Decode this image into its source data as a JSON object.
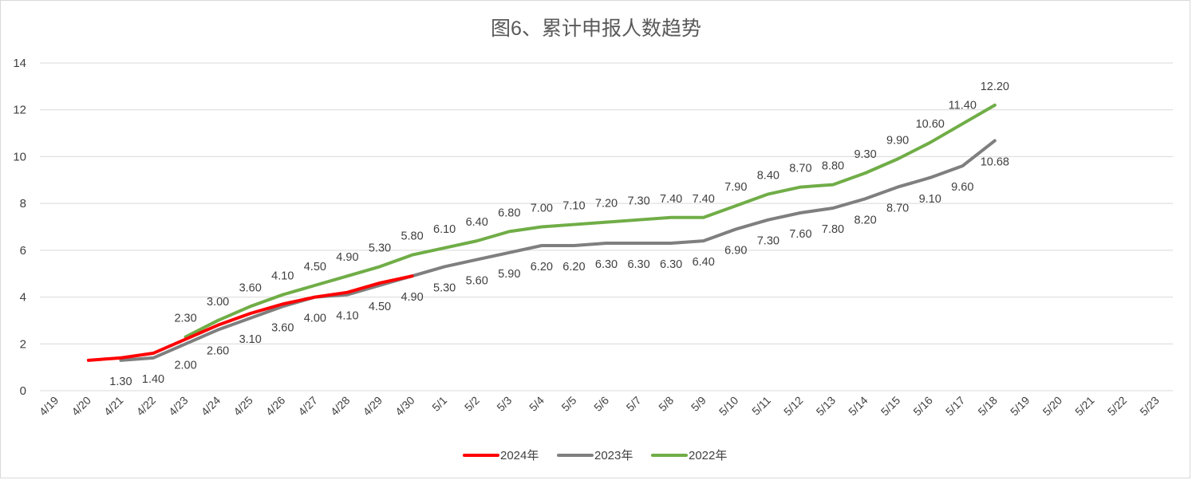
{
  "chart_data": {
    "type": "line",
    "title": "图6、累计申报人数趋势",
    "xlabel": "",
    "ylabel": "",
    "ylim": [
      0,
      14
    ],
    "yticks": [
      0,
      2,
      4,
      6,
      8,
      10,
      12,
      14
    ],
    "grid": true,
    "legend_position": "bottom",
    "categories": [
      "4/19",
      "4/20",
      "4/21",
      "4/22",
      "4/23",
      "4/24",
      "4/25",
      "4/26",
      "4/27",
      "4/28",
      "4/29",
      "4/30",
      "5/1",
      "5/2",
      "5/3",
      "5/4",
      "5/5",
      "5/6",
      "5/7",
      "5/8",
      "5/9",
      "5/10",
      "5/11",
      "5/12",
      "5/13",
      "5/14",
      "5/15",
      "5/16",
      "5/17",
      "5/18",
      "5/19",
      "5/20",
      "5/21",
      "5/22",
      "5/23"
    ],
    "series": [
      {
        "name": "2024年",
        "color": "#ff0000",
        "values": [
          null,
          1.3,
          1.4,
          1.6,
          2.2,
          2.8,
          3.3,
          3.7,
          4.0,
          4.2,
          4.6,
          4.9,
          null,
          null,
          null,
          null,
          null,
          null,
          null,
          null,
          null,
          null,
          null,
          null,
          null,
          null,
          null,
          null,
          null,
          null,
          null,
          null,
          null,
          null,
          null
        ],
        "show_labels": false
      },
      {
        "name": "2023年",
        "color": "#7f7f7f",
        "values": [
          null,
          null,
          1.3,
          1.4,
          2.0,
          2.6,
          3.1,
          3.6,
          4.0,
          4.1,
          4.5,
          4.9,
          5.3,
          5.6,
          5.9,
          6.2,
          6.2,
          6.3,
          6.3,
          6.3,
          6.4,
          6.9,
          7.3,
          7.6,
          7.8,
          8.2,
          8.7,
          9.1,
          9.6,
          10.68,
          null,
          null,
          null,
          null,
          null
        ],
        "labels": [
          null,
          null,
          "1.30",
          "1.40",
          "2.00",
          "2.60",
          "3.10",
          "3.60",
          "4.00",
          "4.10",
          "4.50",
          "4.90",
          "5.30",
          "5.60",
          "5.90",
          "6.20",
          "6.20",
          "6.30",
          "6.30",
          "6.30",
          "6.40",
          "6.90",
          "7.30",
          "7.60",
          "7.80",
          "8.20",
          "8.70",
          "9.10",
          "9.60",
          "10.68",
          null,
          null,
          null,
          null,
          null
        ],
        "show_labels": true
      },
      {
        "name": "2022年",
        "color": "#70ad47",
        "values": [
          null,
          null,
          null,
          null,
          2.3,
          3.0,
          3.6,
          4.1,
          4.5,
          4.9,
          5.3,
          5.8,
          6.1,
          6.4,
          6.8,
          7.0,
          7.1,
          7.2,
          7.3,
          7.4,
          7.4,
          7.9,
          8.4,
          8.7,
          8.8,
          9.3,
          9.9,
          10.6,
          11.4,
          12.2,
          null,
          null,
          null,
          null,
          null
        ],
        "labels": [
          null,
          null,
          null,
          null,
          "2.30",
          "3.00",
          "3.60",
          "4.10",
          "4.50",
          "4.90",
          "5.30",
          "5.80",
          "6.10",
          "6.40",
          "6.80",
          "7.00",
          "7.10",
          "7.20",
          "7.30",
          "7.40",
          "7.40",
          "7.90",
          "8.40",
          "8.70",
          "8.80",
          "9.30",
          "9.90",
          "10.60",
          "11.40",
          "12.20",
          null,
          null,
          null,
          null,
          null
        ],
        "show_labels": true
      }
    ]
  },
  "colors": {
    "grid": "#d9d9d9",
    "text": "#404040",
    "title": "#595959"
  }
}
